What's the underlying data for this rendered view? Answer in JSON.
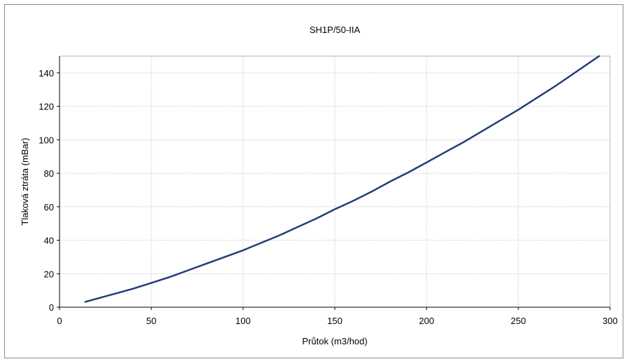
{
  "chart_data": {
    "type": "line",
    "title": "SH1P/50-IIA",
    "xlabel": "Průtok (m3/hod)",
    "ylabel": "Tlaková ztráta (mBar)",
    "xlim": [
      0,
      300
    ],
    "ylim": [
      0,
      150
    ],
    "xticks": [
      0,
      50,
      100,
      150,
      200,
      250,
      300
    ],
    "yticks": [
      0,
      20,
      40,
      60,
      80,
      100,
      120,
      140
    ],
    "grid": true,
    "legend": "none",
    "colors": {
      "line": "#233e77",
      "grid": "#b5b5b5",
      "axis": "#000000"
    },
    "series": [
      {
        "x": [
          14,
          20,
          30,
          40,
          50,
          60,
          70,
          80,
          90,
          100,
          110,
          120,
          130,
          140,
          150,
          160,
          170,
          180,
          190,
          200,
          210,
          220,
          230,
          240,
          250,
          260,
          270,
          280,
          290,
          294
        ],
        "y": [
          3.2,
          5,
          8,
          11,
          14.5,
          18,
          22,
          26,
          30,
          34,
          38.5,
          43,
          48,
          53,
          58.5,
          63.5,
          69,
          75,
          80.5,
          86.5,
          92.5,
          98.5,
          105,
          111.5,
          118,
          125,
          132,
          139.5,
          147,
          150
        ]
      }
    ]
  }
}
